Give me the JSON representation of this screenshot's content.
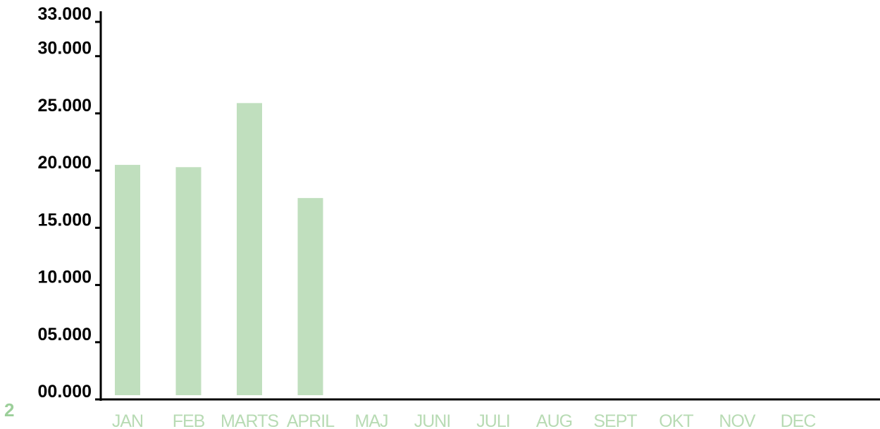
{
  "colors": {
    "bar": "#c0dfbe",
    "month_label": "#b8dbb4",
    "axis": "#000000",
    "corner": "#9ccf9a"
  },
  "corner_label": "2",
  "chart_data": {
    "type": "bar",
    "categories": [
      "JAN",
      "FEB",
      "MARTS",
      "APRIL",
      "MAJ",
      "JUNI",
      "JULI",
      "AUG",
      "SEPT",
      "OKT",
      "NOV",
      "DEC"
    ],
    "values": [
      20500,
      20300,
      25900,
      17600,
      null,
      null,
      null,
      null,
      null,
      null,
      null,
      null
    ],
    "yticks": [
      0,
      5000,
      10000,
      15000,
      20000,
      25000,
      30000,
      33000
    ],
    "ytick_labels": [
      "00.000",
      "05.000",
      "10.000",
      "15.000",
      "20.000",
      "25.000",
      "30.000",
      "33.000"
    ],
    "ylim": [
      0,
      33000
    ],
    "title": "",
    "xlabel": "",
    "ylabel": "",
    "grid": false,
    "legend": "none"
  }
}
